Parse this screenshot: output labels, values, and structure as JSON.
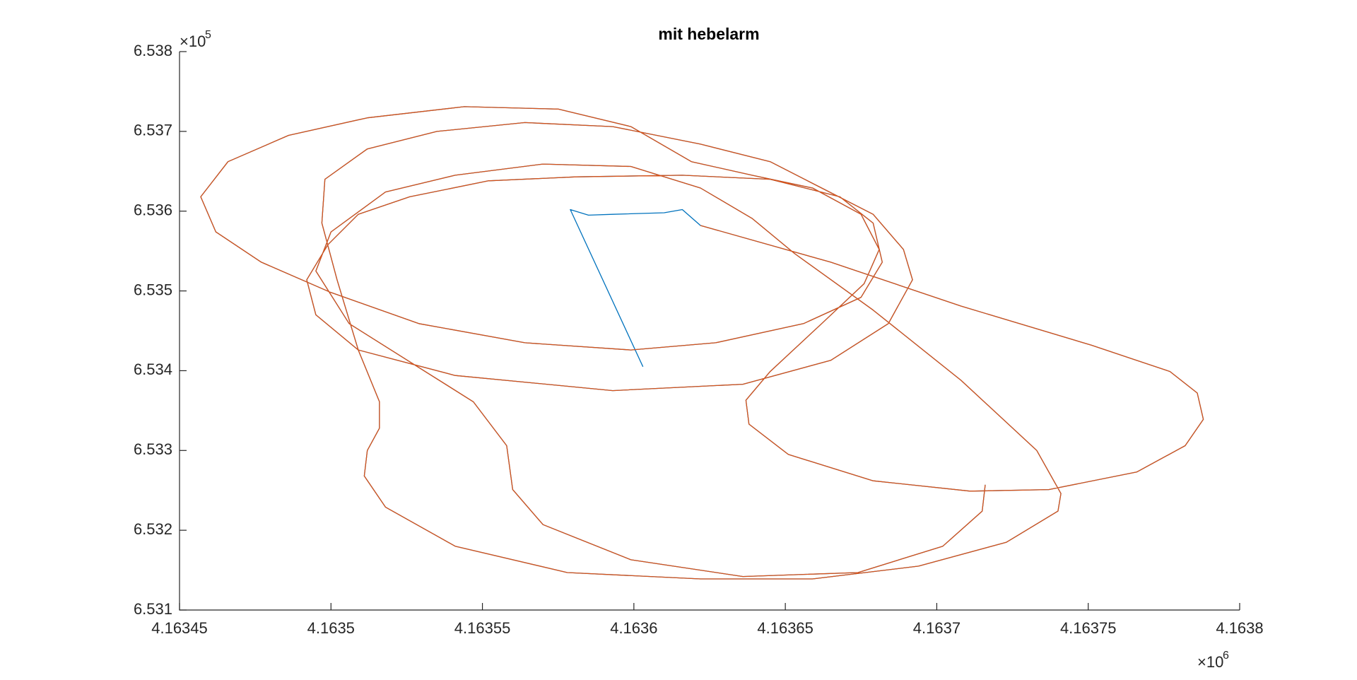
{
  "chart_data": {
    "type": "line",
    "title": "mit hebelarm",
    "x_exponent": {
      "base": "×10",
      "power": "6"
    },
    "y_exponent": {
      "base": "×10",
      "power": "5"
    },
    "xlim": [
      4163450,
      4163800
    ],
    "ylim": [
      653100,
      653800
    ],
    "xticks": [
      {
        "value": 4163450,
        "label": "4.16345"
      },
      {
        "value": 4163500,
        "label": "4.1635"
      },
      {
        "value": 4163550,
        "label": "4.16355"
      },
      {
        "value": 4163600,
        "label": "4.1636"
      },
      {
        "value": 4163650,
        "label": "4.16365"
      },
      {
        "value": 4163700,
        "label": "4.1637"
      },
      {
        "value": 4163750,
        "label": "4.16375"
      },
      {
        "value": 4163800,
        "label": "4.1638"
      }
    ],
    "yticks": [
      {
        "value": 653100,
        "label": "6.531"
      },
      {
        "value": 653200,
        "label": "6.532"
      },
      {
        "value": 653300,
        "label": "6.533"
      },
      {
        "value": 653400,
        "label": "6.534"
      },
      {
        "value": 653500,
        "label": "6.535"
      },
      {
        "value": 653600,
        "label": "6.536"
      },
      {
        "value": 653700,
        "label": "6.537"
      },
      {
        "value": 653800,
        "label": "6.538"
      }
    ],
    "series": [
      {
        "color": "#0072BD",
        "x": [
          4163603,
          4163579,
          4163585,
          4163593,
          4163610,
          4163616,
          4163622,
          4163665,
          4163708,
          4163751,
          4163777,
          4163786,
          4163788,
          4163782,
          4163766,
          4163737,
          4163711,
          4163679,
          4163651,
          4163638,
          4163637,
          4163645,
          4163662,
          4163676,
          4163681,
          4163675,
          4163659,
          4163639,
          4163619,
          4163599,
          4163575,
          4163544,
          4163512,
          4163486,
          4163466,
          4163457,
          4163462,
          4163477,
          4163500,
          4163529,
          4163564,
          4163599,
          4163627,
          4163656,
          4163675,
          4163682,
          4163679,
          4163668,
          4163645,
          4163616,
          4163581,
          4163552,
          4163526,
          4163509,
          4163499,
          4163492,
          4163495,
          4163509,
          4163541,
          4163593,
          4163636,
          4163665,
          4163684,
          4163692,
          4163689,
          4163679,
          4163662,
          4163645,
          4163622,
          4163593,
          4163564,
          4163535,
          4163512,
          4163498,
          4163497,
          4163502,
          4163509,
          4163516,
          4163516,
          4163512,
          4163511,
          4163518,
          4163541,
          4163578,
          4163622,
          4163659,
          4163694,
          4163723,
          4163740,
          4163741,
          4163733,
          4163708,
          4163679,
          4163653,
          4163639,
          4163622,
          4163599,
          4163570,
          4163541,
          4163518,
          4163500,
          4163495,
          4163506,
          4163529,
          4163547,
          4163558,
          4163560,
          4163570,
          4163599,
          4163636,
          4163674,
          4163702,
          4163715,
          4163716
        ],
        "y": [
          653405,
          653602,
          653595,
          653596,
          653598,
          653602,
          653582,
          653536,
          653481,
          653432,
          653399,
          653372,
          653339,
          653306,
          653273,
          653251,
          653249,
          653262,
          653295,
          653333,
          653363,
          653399,
          653459,
          653509,
          653552,
          653596,
          653629,
          653645,
          653662,
          653706,
          653728,
          653731,
          653717,
          653695,
          653662,
          653618,
          653574,
          653536,
          653498,
          653459,
          653435,
          653426,
          653435,
          653459,
          653492,
          653536,
          653585,
          653618,
          653640,
          653645,
          653643,
          653638,
          653618,
          653596,
          653558,
          653514,
          653470,
          653426,
          653394,
          653375,
          653383,
          653413,
          653459,
          653514,
          653552,
          653596,
          653629,
          653662,
          653684,
          653706,
          653711,
          653700,
          653678,
          653640,
          653585,
          653514,
          653426,
          653361,
          653328,
          653300,
          653268,
          653229,
          653180,
          653147,
          653139,
          653139,
          653155,
          653185,
          653224,
          653246,
          653300,
          653388,
          653476,
          653547,
          653591,
          653629,
          653656,
          653659,
          653645,
          653624,
          653574,
          653525,
          653459,
          653404,
          653361,
          653306,
          653251,
          653207,
          653163,
          653142,
          653147,
          653180,
          653224,
          653257
        ]
      },
      {
        "color": "#D95319",
        "x": [
          4163622,
          4163665,
          4163708,
          4163751,
          4163777,
          4163786,
          4163788,
          4163782,
          4163766,
          4163737,
          4163711,
          4163679,
          4163651,
          4163638,
          4163637,
          4163645,
          4163662,
          4163676,
          4163681,
          4163675,
          4163659,
          4163639,
          4163619,
          4163599,
          4163575,
          4163544,
          4163512,
          4163486,
          4163466,
          4163457,
          4163462,
          4163477,
          4163500,
          4163529,
          4163564,
          4163599,
          4163627,
          4163656,
          4163675,
          4163682,
          4163679,
          4163668,
          4163645,
          4163616,
          4163581,
          4163552,
          4163526,
          4163509,
          4163499,
          4163492,
          4163495,
          4163509,
          4163541,
          4163593,
          4163636,
          4163665,
          4163684,
          4163692,
          4163689,
          4163679,
          4163662,
          4163645,
          4163622,
          4163593,
          4163564,
          4163535,
          4163512,
          4163498,
          4163497,
          4163502,
          4163509,
          4163516,
          4163516,
          4163512,
          4163511,
          4163518,
          4163541,
          4163578,
          4163622,
          4163659,
          4163694,
          4163723,
          4163740,
          4163741,
          4163733,
          4163708,
          4163679,
          4163653,
          4163639,
          4163622,
          4163599,
          4163570,
          4163541,
          4163518,
          4163500,
          4163495,
          4163506,
          4163529,
          4163547,
          4163558,
          4163560,
          4163570,
          4163599,
          4163636,
          4163674,
          4163702,
          4163715,
          4163716
        ],
        "y": [
          653582,
          653536,
          653481,
          653432,
          653399,
          653372,
          653339,
          653306,
          653273,
          653251,
          653249,
          653262,
          653295,
          653333,
          653363,
          653399,
          653459,
          653509,
          653552,
          653596,
          653629,
          653645,
          653662,
          653706,
          653728,
          653731,
          653717,
          653695,
          653662,
          653618,
          653574,
          653536,
          653498,
          653459,
          653435,
          653426,
          653435,
          653459,
          653492,
          653536,
          653585,
          653618,
          653640,
          653645,
          653643,
          653638,
          653618,
          653596,
          653558,
          653514,
          653470,
          653426,
          653394,
          653375,
          653383,
          653413,
          653459,
          653514,
          653552,
          653596,
          653629,
          653662,
          653684,
          653706,
          653711,
          653700,
          653678,
          653640,
          653585,
          653514,
          653426,
          653361,
          653328,
          653300,
          653268,
          653229,
          653180,
          653147,
          653139,
          653139,
          653155,
          653185,
          653224,
          653246,
          653300,
          653388,
          653476,
          653547,
          653591,
          653629,
          653656,
          653659,
          653645,
          653624,
          653574,
          653525,
          653459,
          653404,
          653361,
          653306,
          653251,
          653207,
          653163,
          653142,
          653147,
          653180,
          653224,
          653257
        ]
      }
    ]
  }
}
